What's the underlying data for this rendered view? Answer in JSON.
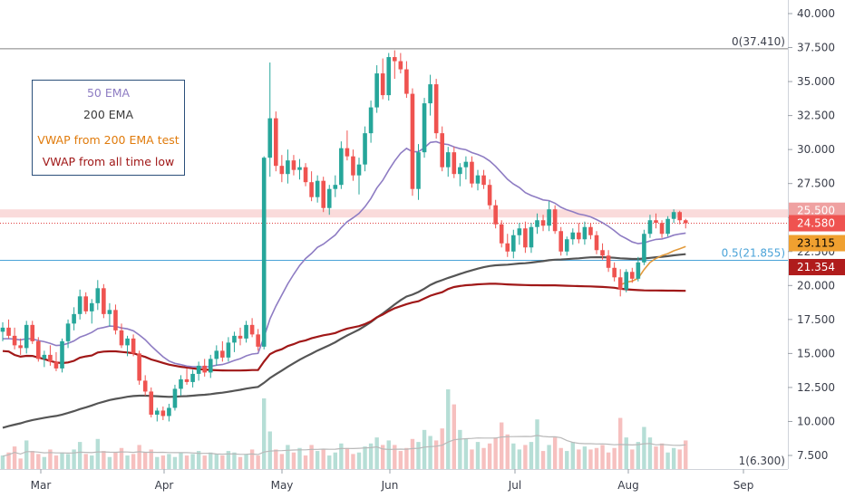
{
  "chart_data": {
    "type": "candlestick",
    "x_tick_labels": [
      "Mar",
      "Apr",
      "May",
      "Jun",
      "Jul",
      "Aug",
      "Sep"
    ],
    "y_tick_labels": [
      "40.000",
      "37.500",
      "35.000",
      "32.500",
      "30.000",
      "27.500",
      "25.000",
      "22.500",
      "20.000",
      "17.500",
      "15.000",
      "12.500",
      "10.000",
      "7.500"
    ],
    "ylim": [
      6.3,
      40.5
    ],
    "grid": false,
    "legend": {
      "placement": "top-left",
      "entries": [
        {
          "label": "50 EMA",
          "color": "#8e7cc3"
        },
        {
          "label": "200 EMA",
          "color": "#3a3a3a"
        },
        {
          "label": "VWAP from 200 EMA test",
          "color": "#e07b0c"
        },
        {
          "label": "VWAP from all time low",
          "color": "#a01818"
        }
      ]
    },
    "fib_levels": [
      {
        "label": "0(37.410)",
        "value": 37.41,
        "color": "#808080"
      },
      {
        "label": "0.5(21.855)",
        "value": 21.855,
        "color": "#4aa3d8"
      },
      {
        "label": "1(6.300)",
        "value": 6.3,
        "color": "#808080"
      }
    ],
    "resistance_zone": {
      "from": 25.0,
      "to": 25.6,
      "color": "#f6c3c3"
    },
    "last_price_line": {
      "value": 24.58,
      "color": "#e04040"
    },
    "price_labels": [
      {
        "text": "25.500",
        "value": 25.5,
        "bg": "#efa1a1",
        "fg": "#ffffff"
      },
      {
        "text": "24.580",
        "value": 24.58,
        "bg": "#ef5350",
        "fg": "#ffffff"
      },
      {
        "text": "23.115",
        "value": 23.115,
        "bg": "#f0a030",
        "fg": "#000000"
      },
      {
        "text": "21.354",
        "value": 21.354,
        "bg": "#b01c1c",
        "fg": "#ffffff"
      }
    ],
    "candles": [
      [
        16.6,
        17.3,
        15.9,
        16.9
      ],
      [
        16.9,
        17.5,
        16.1,
        16.3
      ],
      [
        16.3,
        16.9,
        15.3,
        15.6
      ],
      [
        15.6,
        16.1,
        14.9,
        15.4
      ],
      [
        15.4,
        17.4,
        15.0,
        17.1
      ],
      [
        17.1,
        17.4,
        15.7,
        15.9
      ],
      [
        15.9,
        16.2,
        14.4,
        14.6
      ],
      [
        14.6,
        15.2,
        14.0,
        14.9
      ],
      [
        14.9,
        15.6,
        14.1,
        14.4
      ],
      [
        14.4,
        15.1,
        13.7,
        13.9
      ],
      [
        13.9,
        16.1,
        13.6,
        15.9
      ],
      [
        15.9,
        17.5,
        15.4,
        17.2
      ],
      [
        17.2,
        18.4,
        16.7,
        17.9
      ],
      [
        17.9,
        19.7,
        17.5,
        19.2
      ],
      [
        19.2,
        19.5,
        17.9,
        18.1
      ],
      [
        18.1,
        19.0,
        17.2,
        18.7
      ],
      [
        18.7,
        20.4,
        18.2,
        19.8
      ],
      [
        19.8,
        20.1,
        17.6,
        17.9
      ],
      [
        17.9,
        18.7,
        17.0,
        18.2
      ],
      [
        18.2,
        18.6,
        16.4,
        16.7
      ],
      [
        16.7,
        17.2,
        15.4,
        15.6
      ],
      [
        15.6,
        16.3,
        14.8,
        16.1
      ],
      [
        16.1,
        16.4,
        14.8,
        15.0
      ],
      [
        15.0,
        15.2,
        12.7,
        13.0
      ],
      [
        13.0,
        13.4,
        11.9,
        12.2
      ],
      [
        12.2,
        12.5,
        10.3,
        10.5
      ],
      [
        10.5,
        11.0,
        10.0,
        10.8
      ],
      [
        10.8,
        11.1,
        10.1,
        10.4
      ],
      [
        10.4,
        11.3,
        10.0,
        11.0
      ],
      [
        11.0,
        12.7,
        10.8,
        12.4
      ],
      [
        12.4,
        13.4,
        11.9,
        13.1
      ],
      [
        13.1,
        13.9,
        12.7,
        12.9
      ],
      [
        12.9,
        13.8,
        12.5,
        13.5
      ],
      [
        13.5,
        14.4,
        13.0,
        14.1
      ],
      [
        14.1,
        14.6,
        13.3,
        13.6
      ],
      [
        13.6,
        14.9,
        13.2,
        14.6
      ],
      [
        14.6,
        15.6,
        14.1,
        15.2
      ],
      [
        15.2,
        15.9,
        14.4,
        14.7
      ],
      [
        14.7,
        16.2,
        14.4,
        15.8
      ],
      [
        15.8,
        16.6,
        15.1,
        16.3
      ],
      [
        16.3,
        16.9,
        15.6,
        16.1
      ],
      [
        16.1,
        17.4,
        15.8,
        17.1
      ],
      [
        17.1,
        17.6,
        16.2,
        16.4
      ],
      [
        16.4,
        16.8,
        15.2,
        15.5
      ],
      [
        15.5,
        29.5,
        15.3,
        29.4
      ],
      [
        29.4,
        36.4,
        28.0,
        32.3
      ],
      [
        32.3,
        32.8,
        28.4,
        28.8
      ],
      [
        28.8,
        29.6,
        27.6,
        28.2
      ],
      [
        28.2,
        30.0,
        27.5,
        29.2
      ],
      [
        29.2,
        29.6,
        28.1,
        28.5
      ],
      [
        28.5,
        29.3,
        27.8,
        28.7
      ],
      [
        28.7,
        29.0,
        27.3,
        27.6
      ],
      [
        27.6,
        28.4,
        26.2,
        26.5
      ],
      [
        26.5,
        28.1,
        26.1,
        27.7
      ],
      [
        27.7,
        28.0,
        25.4,
        25.7
      ],
      [
        25.7,
        27.4,
        25.2,
        27.1
      ],
      [
        27.1,
        28.1,
        26.5,
        27.4
      ],
      [
        27.4,
        30.6,
        27.1,
        30.1
      ],
      [
        30.1,
        31.4,
        29.2,
        29.5
      ],
      [
        29.5,
        30.0,
        27.7,
        28.1
      ],
      [
        28.1,
        29.4,
        26.7,
        28.9
      ],
      [
        28.9,
        31.7,
        28.4,
        31.2
      ],
      [
        31.2,
        33.6,
        30.5,
        33.1
      ],
      [
        33.1,
        36.2,
        32.7,
        35.6
      ],
      [
        35.6,
        36.7,
        33.7,
        34.0
      ],
      [
        34.0,
        37.1,
        33.6,
        36.8
      ],
      [
        36.8,
        37.3,
        35.2,
        36.5
      ],
      [
        36.5,
        37.1,
        35.6,
        35.9
      ],
      [
        35.9,
        36.5,
        33.8,
        34.1
      ],
      [
        34.1,
        34.5,
        26.6,
        27.1
      ],
      [
        27.1,
        30.4,
        26.3,
        29.8
      ],
      [
        29.8,
        33.8,
        29.4,
        33.4
      ],
      [
        33.4,
        35.5,
        32.5,
        34.8
      ],
      [
        34.8,
        35.2,
        30.8,
        31.2
      ],
      [
        31.2,
        31.7,
        28.4,
        28.7
      ],
      [
        28.7,
        30.2,
        28.0,
        29.8
      ],
      [
        29.8,
        30.2,
        27.9,
        28.2
      ],
      [
        28.2,
        29.0,
        27.3,
        28.7
      ],
      [
        28.7,
        29.5,
        27.8,
        29.1
      ],
      [
        29.1,
        29.5,
        27.2,
        27.5
      ],
      [
        27.5,
        28.5,
        27.0,
        28.1
      ],
      [
        28.1,
        28.5,
        27.1,
        27.4
      ],
      [
        27.4,
        27.8,
        25.6,
        25.9
      ],
      [
        25.9,
        26.3,
        24.2,
        24.5
      ],
      [
        24.5,
        24.8,
        22.8,
        23.1
      ],
      [
        23.1,
        23.8,
        22.1,
        22.5
      ],
      [
        22.5,
        24.1,
        22.0,
        23.7
      ],
      [
        23.7,
        24.6,
        23.0,
        24.2
      ],
      [
        24.2,
        24.7,
        22.4,
        22.8
      ],
      [
        22.8,
        24.6,
        22.4,
        24.3
      ],
      [
        24.3,
        25.3,
        23.8,
        24.8
      ],
      [
        24.8,
        25.2,
        24.0,
        24.4
      ],
      [
        24.4,
        26.2,
        24.0,
        25.6
      ],
      [
        25.6,
        25.9,
        23.8,
        24.0
      ],
      [
        24.0,
        24.3,
        22.2,
        22.5
      ],
      [
        22.5,
        23.6,
        22.2,
        23.4
      ],
      [
        23.4,
        24.2,
        23.0,
        23.9
      ],
      [
        23.9,
        24.6,
        23.1,
        23.4
      ],
      [
        23.4,
        24.7,
        23.0,
        24.3
      ],
      [
        24.3,
        24.6,
        23.4,
        23.7
      ],
      [
        23.7,
        24.0,
        22.3,
        22.6
      ],
      [
        22.6,
        23.1,
        21.9,
        22.2
      ],
      [
        22.2,
        22.6,
        21.0,
        21.3
      ],
      [
        21.3,
        21.7,
        20.3,
        20.6
      ],
      [
        20.6,
        21.2,
        19.2,
        19.7
      ],
      [
        19.7,
        21.2,
        19.5,
        21.0
      ],
      [
        21.0,
        21.3,
        20.2,
        20.5
      ],
      [
        20.5,
        22.1,
        20.3,
        21.7
      ],
      [
        21.7,
        24.1,
        21.5,
        23.8
      ],
      [
        23.8,
        25.2,
        23.5,
        24.8
      ],
      [
        24.8,
        25.3,
        24.2,
        24.6
      ],
      [
        24.6,
        24.8,
        23.5,
        23.8
      ],
      [
        23.8,
        25.1,
        23.6,
        24.9
      ],
      [
        24.9,
        25.6,
        24.6,
        25.4
      ],
      [
        25.4,
        25.5,
        24.5,
        24.8
      ],
      [
        24.8,
        24.9,
        24.2,
        24.58
      ]
    ],
    "volume": [
      0.9,
      1.1,
      1.5,
      0.7,
      1.9,
      1.2,
      1.0,
      0.8,
      1.3,
      0.9,
      1.1,
      1.0,
      1.3,
      1.8,
      1.0,
      0.9,
      2.0,
      1.2,
      0.8,
      1.1,
      1.4,
      0.9,
      1.0,
      1.6,
      1.1,
      1.3,
      0.8,
      0.9,
      1.0,
      0.8,
      1.1,
      0.9,
      1.0,
      1.2,
      0.9,
      1.1,
      1.0,
      0.9,
      1.2,
      1.1,
      0.8,
      1.0,
      1.3,
      0.9,
      4.7,
      2.5,
      1.3,
      1.0,
      1.6,
      1.1,
      1.4,
      0.9,
      1.6,
      1.2,
      1.3,
      0.9,
      1.1,
      1.7,
      1.4,
      1.0,
      1.1,
      1.5,
      1.7,
      2.1,
      1.6,
      1.9,
      1.6,
      1.2,
      1.4,
      2.0,
      1.8,
      2.6,
      2.2,
      1.9,
      2.7,
      5.3,
      4.3,
      2.6,
      2.0,
      1.3,
      1.8,
      1.4,
      1.7,
      2.1,
      3.1,
      2.3,
      1.7,
      1.3,
      1.6,
      1.8,
      3.3,
      1.2,
      1.6,
      2.1,
      1.4,
      1.2,
      1.8,
      1.3,
      1.5,
      1.3,
      1.4,
      1.6,
      1.1,
      1.4,
      3.4,
      2.1,
      1.3,
      1.8,
      2.8,
      2.1,
      1.5,
      1.7,
      1.1,
      1.4,
      1.3,
      1.9
    ],
    "volume_axis_max": 7.5
  }
}
